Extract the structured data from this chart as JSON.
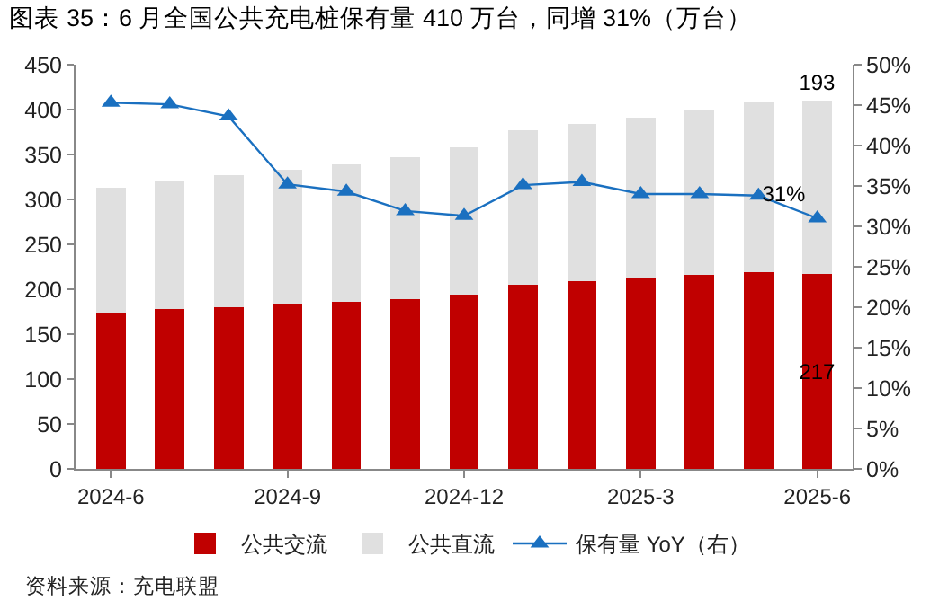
{
  "chart_data": {
    "type": "bar",
    "title": "图表 35：6 月全国公共充电桩保有量 410 万台，同增 31%（万台）",
    "categories": [
      "2024-6",
      null,
      null,
      "2024-9",
      null,
      null,
      "2024-12",
      null,
      null,
      "2025-3",
      null,
      null,
      "2025-6"
    ],
    "stacked": true,
    "series": [
      {
        "name": "公共交流",
        "color": "#c00000",
        "values": [
          173,
          178,
          180,
          183,
          186,
          189,
          194,
          205,
          209,
          212,
          216,
          219,
          217
        ],
        "value_labels": [
          null,
          null,
          null,
          null,
          null,
          null,
          null,
          null,
          null,
          null,
          null,
          null,
          "217"
        ]
      },
      {
        "name": "公共直流",
        "color": "#e0e0e0",
        "values": [
          140,
          143,
          147,
          150,
          153,
          158,
          164,
          172,
          175,
          179,
          184,
          190,
          193
        ],
        "value_labels": [
          null,
          null,
          null,
          null,
          null,
          null,
          null,
          null,
          null,
          null,
          null,
          null,
          "193"
        ]
      },
      {
        "name": "保有量 YoY（右）",
        "type": "line",
        "axis": "y2",
        "color": "#1a70c0",
        "marker": "triangle",
        "values": [
          45.3,
          45.1,
          43.6,
          35.2,
          34.3,
          31.9,
          31.3,
          35.1,
          35.5,
          34.0,
          34.0,
          33.8,
          31.0
        ],
        "value_labels": [
          null,
          null,
          null,
          null,
          null,
          null,
          null,
          null,
          null,
          null,
          null,
          null,
          "31%"
        ]
      }
    ],
    "ylim": [
      0,
      450
    ],
    "yticks": [
      0,
      50,
      100,
      150,
      200,
      250,
      300,
      350,
      400,
      450
    ],
    "y2lim": [
      0,
      50
    ],
    "y2ticks": [
      {
        "value": 0,
        "label": "0%"
      },
      {
        "value": 5,
        "label": "5%"
      },
      {
        "value": 10,
        "label": "10%"
      },
      {
        "value": 15,
        "label": "15%"
      },
      {
        "value": 20,
        "label": "20%"
      },
      {
        "value": 25,
        "label": "25%"
      },
      {
        "value": 30,
        "label": "30%"
      },
      {
        "value": 35,
        "label": "35%"
      },
      {
        "value": 40,
        "label": "40%"
      },
      {
        "value": 45,
        "label": "45%"
      },
      {
        "value": 50,
        "label": "50%"
      }
    ],
    "grid": false,
    "legend": "bottom",
    "annotations": [
      "资料来源：充电联盟"
    ]
  }
}
